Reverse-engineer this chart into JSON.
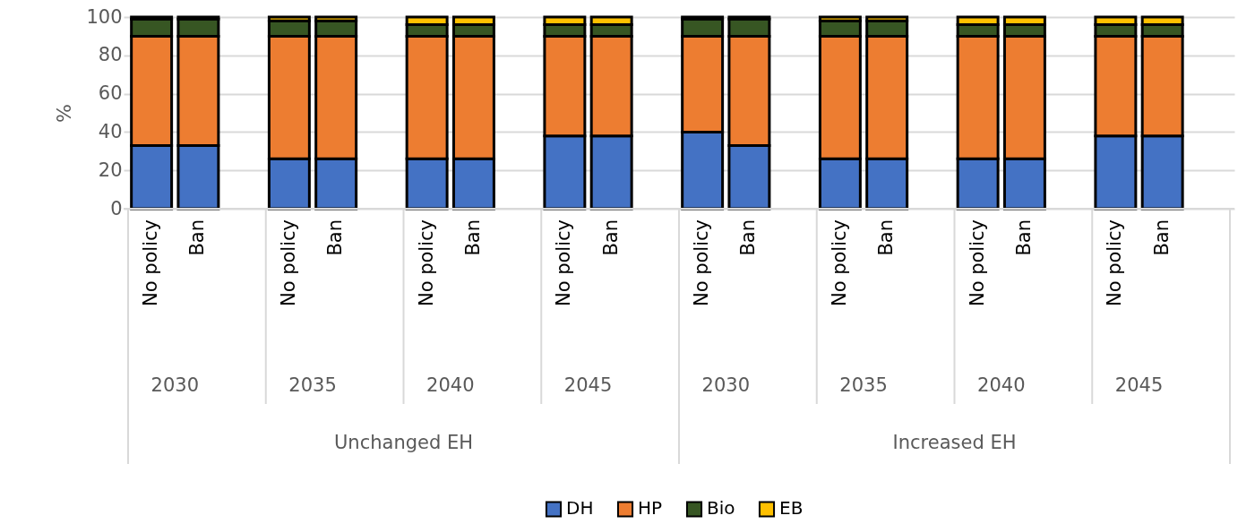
{
  "chart_data": {
    "type": "bar",
    "stacked": true,
    "ylabel": "%",
    "ylim": [
      0,
      100
    ],
    "yticks": [
      0,
      20,
      40,
      60,
      80,
      100
    ],
    "grid": "y",
    "legend": "bottom",
    "categories": [
      "No policy",
      "Ban",
      "No policy",
      "Ban",
      "No policy",
      "Ban",
      "No policy",
      "Ban",
      "No policy",
      "Ban",
      "No policy",
      "Ban",
      "No policy",
      "Ban",
      "No policy",
      "Ban"
    ],
    "annotations": [
      "2030",
      "2035",
      "2040",
      "2045",
      "2030",
      "2035",
      "2040",
      "2045",
      "Unchanged EH",
      "Increased EH"
    ],
    "series": [
      {
        "name": "DH",
        "color": "#4472c4",
        "values": [
          33,
          33,
          26,
          26,
          26,
          26,
          38,
          38,
          40,
          33,
          26,
          26,
          26,
          26,
          38,
          38
        ]
      },
      {
        "name": "HP",
        "color": "#ed7d31",
        "values": [
          57,
          57,
          64,
          64,
          64,
          64,
          52,
          52,
          50,
          57,
          64,
          64,
          64,
          64,
          52,
          52
        ]
      },
      {
        "name": "Bio",
        "color": "#375623",
        "values": [
          9,
          9,
          8,
          8,
          6,
          6,
          6,
          6,
          9,
          9,
          8,
          8,
          6,
          6,
          6,
          6
        ]
      },
      {
        "name": "EB",
        "color": "#ffc000",
        "values": [
          1,
          1,
          2,
          2,
          4,
          4,
          4,
          4,
          1,
          1,
          2,
          2,
          4,
          4,
          4,
          4
        ]
      }
    ]
  }
}
